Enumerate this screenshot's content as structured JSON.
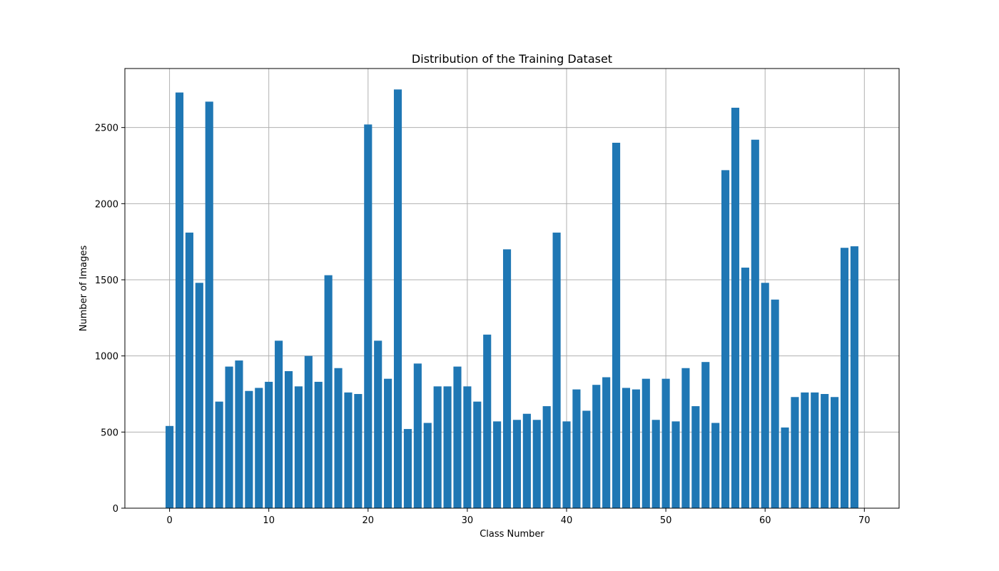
{
  "chart_data": {
    "type": "bar",
    "title": "Distribution of the Training Dataset",
    "xlabel": "Class Number",
    "ylabel": "Number of Images",
    "categories": [
      0,
      1,
      2,
      3,
      4,
      5,
      6,
      7,
      8,
      9,
      10,
      11,
      12,
      13,
      14,
      15,
      16,
      17,
      18,
      19,
      20,
      21,
      22,
      23,
      24,
      25,
      26,
      27,
      28,
      29,
      30,
      31,
      32,
      33,
      34,
      35,
      36,
      37,
      38,
      39,
      40,
      41,
      42,
      43,
      44,
      45,
      46,
      47,
      48,
      49,
      50,
      51,
      52,
      53,
      54,
      55,
      56,
      57,
      58,
      59,
      60,
      61,
      62,
      63,
      64,
      65,
      66,
      67,
      68,
      69
    ],
    "values": [
      540,
      2730,
      1810,
      1480,
      2670,
      700,
      930,
      970,
      770,
      790,
      830,
      1100,
      900,
      800,
      1000,
      830,
      1530,
      920,
      760,
      750,
      2520,
      1100,
      850,
      2750,
      520,
      950,
      560,
      800,
      800,
      930,
      800,
      700,
      1140,
      570,
      1700,
      580,
      620,
      580,
      670,
      1810,
      570,
      780,
      640,
      810,
      860,
      2400,
      790,
      780,
      850,
      580,
      850,
      570,
      920,
      670,
      960,
      560,
      2220,
      2630,
      1580,
      2420,
      1480,
      1370,
      530,
      730,
      760,
      760,
      750,
      730,
      1710,
      1720
    ],
    "color": "#1f77b4",
    "xlim": [
      -4.5,
      73.5
    ],
    "ylim": [
      0,
      2887.5
    ],
    "xticks": [
      0,
      10,
      20,
      30,
      40,
      50,
      60,
      70
    ],
    "yticks": [
      0,
      500,
      1000,
      1500,
      2000,
      2500
    ],
    "grid": true,
    "legend": "none"
  }
}
